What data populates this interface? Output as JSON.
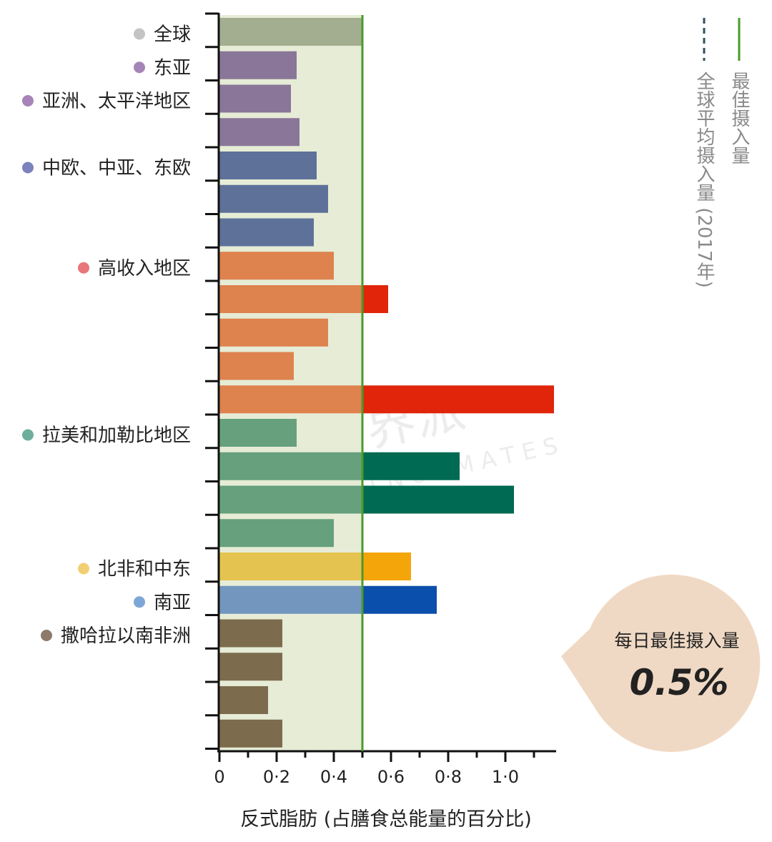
{
  "chart_data": {
    "type": "bar",
    "orientation": "horizontal",
    "xlabel": "反式脂肪 (占膳食总能量的百分比)",
    "xlim": [
      0,
      1.2
    ],
    "xticks": [
      "0",
      "0·2",
      "0·4",
      "0·6",
      "0·8",
      "1·0"
    ],
    "xtick_values": [
      0,
      0.2,
      0.4,
      0.6,
      0.8,
      1.0
    ],
    "grid": false,
    "reference_lines": [
      {
        "label": "最佳摄入量",
        "value": 0.5,
        "style": "solid",
        "color": "#4a9a2a"
      },
      {
        "label": "全球平均摄入量 (2017年)",
        "value": 0.5,
        "style": "dashed",
        "color": "#2f4f5f"
      }
    ],
    "groups": [
      {
        "name": "全球",
        "dot_color": "#c4c4c4",
        "bar_color": "#a3ae91",
        "over_color": "#a3ae91",
        "values": [
          0.5
        ]
      },
      {
        "name": "东亚",
        "dot_color": "#a684b8",
        "bar_color": "#8a7698",
        "over_color": "#8a7698",
        "values": [
          0.27
        ]
      },
      {
        "name": "亚洲、太平洋地区",
        "dot_color": "#a684b8",
        "bar_color": "#8a7698",
        "over_color": "#8a7698",
        "values": [
          0.25,
          0.28
        ]
      },
      {
        "name": "中欧、中亚、东欧",
        "dot_color": "#7b83bd",
        "bar_color": "#5e7199",
        "over_color": "#5e7199",
        "values": [
          0.34,
          0.38,
          0.33
        ]
      },
      {
        "name": "高收入地区",
        "dot_color": "#e8767a",
        "bar_color": "#de824e",
        "over_color": "#e0250a",
        "values": [
          0.4,
          0.59,
          0.38,
          0.26,
          1.17
        ]
      },
      {
        "name": "拉美和加勒比地区",
        "dot_color": "#6cae9b",
        "bar_color": "#66a07c",
        "over_color": "#006a52",
        "values": [
          0.27,
          0.84,
          1.03,
          0.4
        ]
      },
      {
        "name": "北非和中东",
        "dot_color": "#f3cf73",
        "bar_color": "#e5c350",
        "over_color": "#f4a50a",
        "values": [
          0.67
        ]
      },
      {
        "name": "南亚",
        "dot_color": "#7ea6d6",
        "bar_color": "#7296be",
        "over_color": "#0b4fac",
        "values": [
          0.76
        ]
      },
      {
        "name": "撒哈拉以南非洲",
        "dot_color": "#8e7a6a",
        "bar_color": "#7d6b4d",
        "over_color": "#7d6b4d",
        "values": [
          0.22,
          0.22,
          0.17,
          0.22
        ]
      }
    ],
    "shade_color": "#e6ecd6"
  },
  "callout": {
    "title": "每日最佳摄入量",
    "value": "0.5%",
    "color": "#f0d9c4"
  },
  "watermark": {
    "cn": "食界派",
    "en": "CHESTNUTMATES"
  }
}
